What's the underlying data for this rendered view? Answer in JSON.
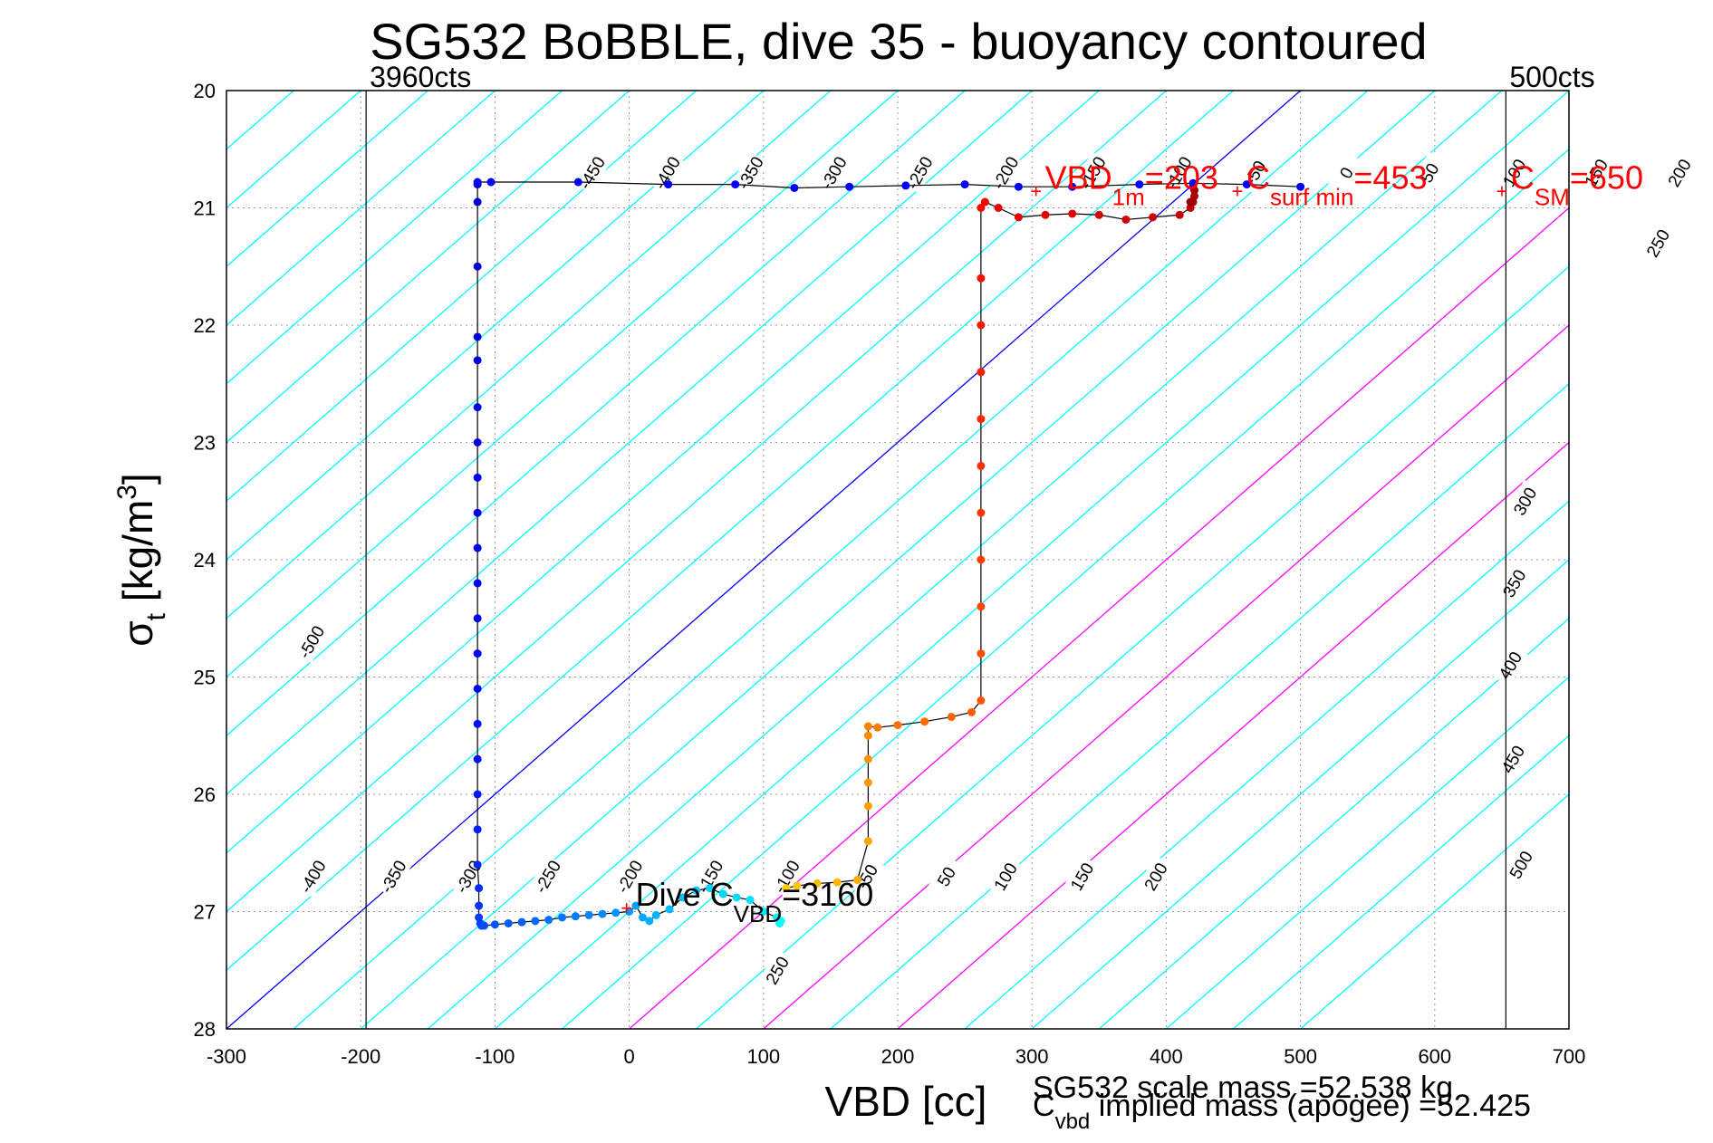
{
  "chart_data": {
    "type": "scatter",
    "title": "SG532 BoBBLE, dive 35 - buoyancy contoured",
    "xlabel": "VBD [cc]",
    "ylabel": {
      "base": "σ",
      "sub": "t",
      "unit": "[kg/m",
      "sup": "3",
      "close": "]"
    },
    "xlim": [
      -300,
      700
    ],
    "ylim": [
      20,
      28
    ],
    "y_reversed": true,
    "grid": true,
    "xticks": [
      -300,
      -200,
      -100,
      0,
      100,
      200,
      300,
      400,
      500,
      600,
      700
    ],
    "yticks": [
      20,
      21,
      22,
      23,
      24,
      25,
      26,
      27,
      28
    ],
    "vlines": [
      {
        "x": -196,
        "label": "3960cts"
      },
      {
        "x": 653,
        "label": "500cts"
      }
    ],
    "contours": {
      "x_at_sigma20": [
        -400,
        -350,
        -300,
        -250,
        -200,
        -150,
        -100,
        -50,
        0,
        50,
        100,
        150,
        200,
        250,
        300,
        350,
        400,
        450,
        500,
        550,
        600,
        650,
        700,
        750,
        800,
        850,
        900,
        950,
        1000,
        1050,
        1100,
        1150,
        1200,
        1250,
        1300
      ],
      "dx_per_sigma": -100,
      "zero_color": "#0000ff",
      "highlight_color": "#ff00ff",
      "normal_color": "#00ffff",
      "highlight_x": [
        800,
        900,
        1000
      ],
      "zero_x": 500,
      "labels": [
        {
          "text": "-450",
          "sigma": 20.7
        },
        {
          "text": "-400",
          "sigma": 20.7
        },
        {
          "text": "-350",
          "sigma": 20.7
        },
        {
          "text": "-300",
          "sigma": 20.7
        },
        {
          "text": "-250",
          "sigma": 20.7
        },
        {
          "text": "-200",
          "sigma": 20.7
        },
        {
          "text": "-150",
          "sigma": 20.7
        },
        {
          "text": "-100",
          "sigma": 20.7
        },
        {
          "text": "-50",
          "sigma": 20.7
        },
        {
          "text": "0",
          "sigma": 20.7
        },
        {
          "text": "50",
          "sigma": 20.7
        },
        {
          "text": "100",
          "sigma": 20.7
        },
        {
          "text": "150",
          "sigma": 20.7
        },
        {
          "text": "200",
          "sigma": 20.7
        },
        {
          "text": "250",
          "sigma": 21.3
        },
        {
          "text": "300",
          "sigma": 23.5
        },
        {
          "text": "350",
          "sigma": 24.2
        },
        {
          "text": "400",
          "sigma": 24.9
        },
        {
          "text": "450",
          "sigma": 25.7
        },
        {
          "text": "500",
          "sigma": 26.6
        },
        {
          "text": "-500",
          "sigma": 24.7
        },
        {
          "text": "-400",
          "sigma": 26.7
        },
        {
          "text": "-350",
          "sigma": 26.7
        },
        {
          "text": "-300",
          "sigma": 26.7
        },
        {
          "text": "-250",
          "sigma": 26.7
        },
        {
          "text": "-200",
          "sigma": 26.7
        },
        {
          "text": "-150",
          "sigma": 26.7
        },
        {
          "text": "-100",
          "sigma": 26.7
        },
        {
          "text": "-50",
          "sigma": 26.7
        },
        {
          "text": "50",
          "sigma": 26.7
        },
        {
          "text": "100",
          "sigma": 26.7
        },
        {
          "text": "150",
          "sigma": 26.7
        },
        {
          "text": "200",
          "sigma": 26.7
        },
        {
          "text": "250",
          "sigma": 27.5
        }
      ]
    },
    "label_x_at_sigma": {
      "20.7": [
        -28,
        28,
        90,
        152,
        216,
        280,
        345,
        409,
        466,
        534,
        596,
        659,
        720,
        782
      ],
      "other": {
        "21.3": 766,
        "23.5": 667,
        "24.2": 659,
        "24.9": 656,
        "25.7": 658,
        "26.6": 664,
        "24.7": -237,
        "27.5": 110
      },
      "26.7": [
        -236,
        -176,
        -120,
        -61,
        0,
        60,
        117,
        177,
        236,
        280,
        337,
        392,
        452
      ]
    },
    "series": [
      {
        "name": "dive",
        "color_gradient": [
          "#0000cc",
          "#0000ff",
          "#0055ff",
          "#00aaff",
          "#00ffff"
        ],
        "x": [
          -113,
          -113,
          -113,
          -113,
          -113,
          -113,
          -113,
          -113,
          -113,
          -113,
          -113,
          -113,
          -113,
          -113,
          -113,
          -113,
          -113,
          -113,
          -113,
          -112,
          -112,
          -112,
          -111,
          -110,
          -108,
          -100,
          -90,
          -80,
          -70,
          -60,
          -50,
          -40,
          -30,
          -20,
          -10,
          0,
          5,
          10,
          15,
          20,
          30,
          40,
          50,
          60,
          70,
          80,
          90,
          100,
          110,
          112,
          113
        ],
        "sigma": [
          20.8,
          20.95,
          21.5,
          22.1,
          22.3,
          22.7,
          23.0,
          23.3,
          23.6,
          23.9,
          24.2,
          24.5,
          24.8,
          25.1,
          25.4,
          25.7,
          26.0,
          26.3,
          26.6,
          26.8,
          26.95,
          27.05,
          27.1,
          27.12,
          27.12,
          27.11,
          27.1,
          27.09,
          27.08,
          27.07,
          27.05,
          27.04,
          27.03,
          27.02,
          27.01,
          27.0,
          26.95,
          27.05,
          27.08,
          27.03,
          26.98,
          26.88,
          26.82,
          26.8,
          26.85,
          26.88,
          26.9,
          27.0,
          27.05,
          27.1,
          27.08
        ]
      },
      {
        "name": "climb",
        "color_gradient": [
          "#ffcc00",
          "#ff9900",
          "#ff6600",
          "#ff3300",
          "#ee0000",
          "#cc0000",
          "#990000"
        ],
        "x": [
          117,
          125,
          140,
          155,
          170,
          178,
          178,
          178,
          178,
          178,
          178,
          185,
          200,
          220,
          240,
          255,
          262,
          262,
          262,
          262,
          262,
          262,
          262,
          262,
          262,
          262,
          262,
          265,
          275,
          290,
          310,
          330,
          350,
          370,
          390,
          410,
          418,
          420,
          421,
          421,
          420,
          418
        ],
        "sigma": [
          26.8,
          26.78,
          26.76,
          26.75,
          26.73,
          26.4,
          26.1,
          25.9,
          25.7,
          25.5,
          25.42,
          25.43,
          25.41,
          25.38,
          25.34,
          25.3,
          25.2,
          24.8,
          24.4,
          24.0,
          23.6,
          23.2,
          22.8,
          22.4,
          22.0,
          21.6,
          21.0,
          20.95,
          21.0,
          21.08,
          21.06,
          21.05,
          21.06,
          21.1,
          21.08,
          21.06,
          21.0,
          20.95,
          20.9,
          20.85,
          20.82,
          20.95
        ]
      },
      {
        "name": "surface",
        "color_gradient": [
          "#0000ff"
        ],
        "x": [
          -113,
          -103,
          -38,
          29,
          79,
          123,
          164,
          206,
          250,
          290,
          330,
          380,
          420,
          460,
          500
        ],
        "sigma": [
          20.78,
          20.78,
          20.78,
          20.8,
          20.8,
          20.83,
          20.82,
          20.81,
          20.8,
          20.82,
          20.82,
          20.8,
          20.79,
          20.8,
          20.82
        ]
      }
    ],
    "markers": [
      {
        "x": -2,
        "sigma": 26.98,
        "label": "Dive C",
        "sub": "VBD",
        "value": "=3160",
        "color": "#000000"
      },
      {
        "x": 303,
        "sigma": 20.87,
        "label": "VBD",
        "sub": "1m",
        "value": "=203",
        "color": "#ff0000"
      },
      {
        "x": 453,
        "sigma": 20.87,
        "label": "C",
        "sub": "surf min",
        "value": "=453",
        "color": "#ff0000"
      },
      {
        "x": 650,
        "sigma": 20.87,
        "label": "C",
        "sub": "SM",
        "value": "=650",
        "color": "#ff0000"
      }
    ],
    "footer": [
      {
        "label": "SG532 scale mass =52.538 kg"
      },
      {
        "label": "C",
        "sub": "vbd",
        "rest": " implied mass (apogee) =52.425"
      }
    ]
  }
}
